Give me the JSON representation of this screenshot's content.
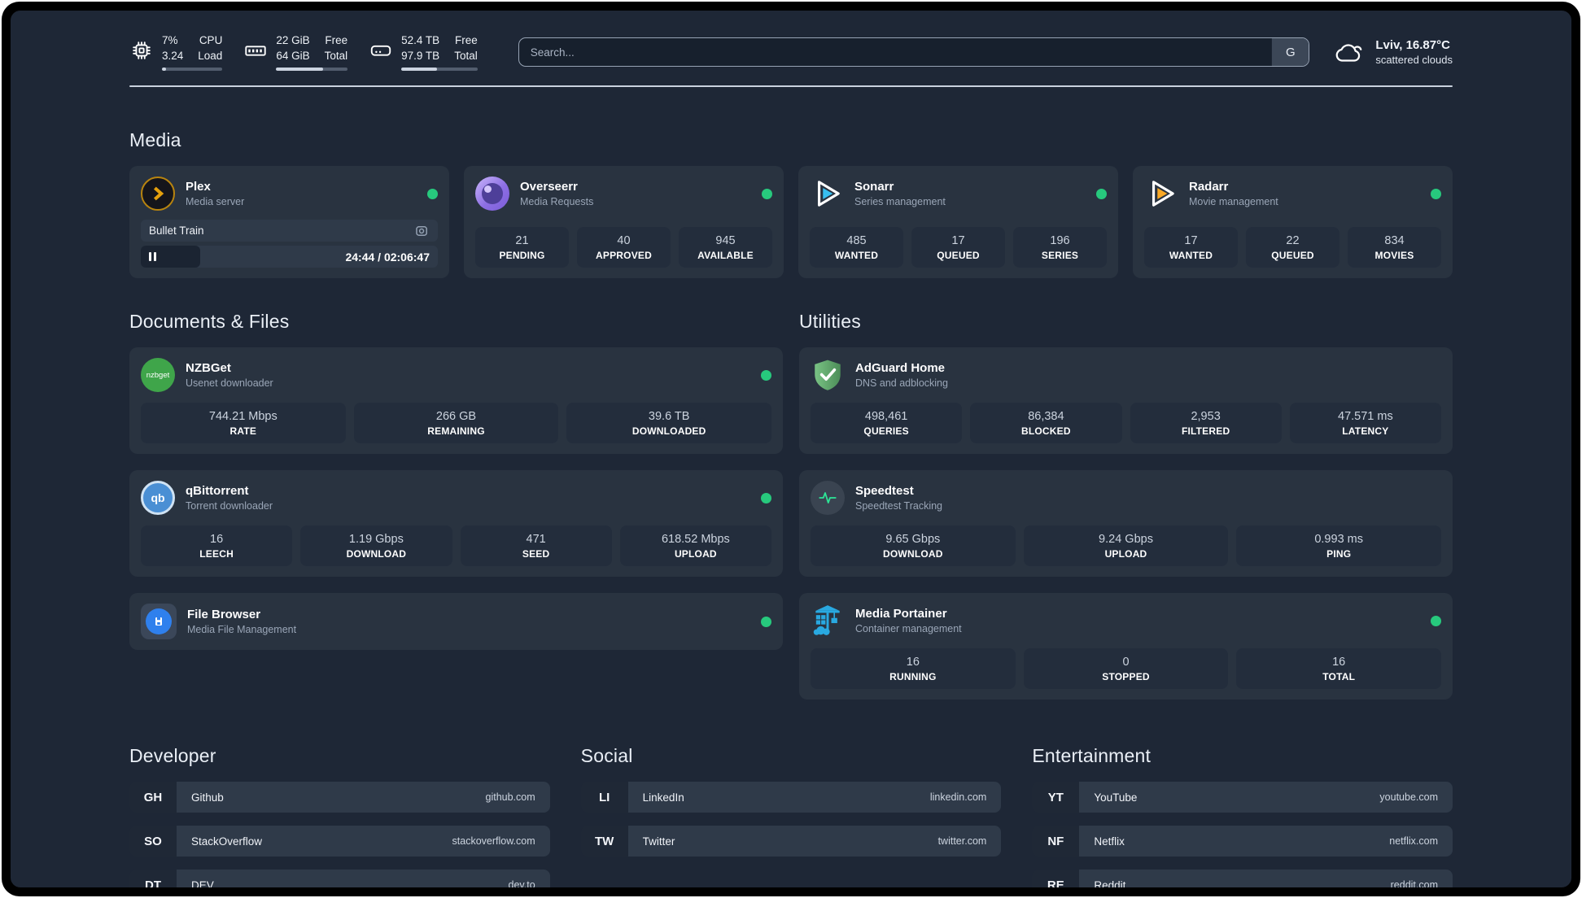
{
  "colors": {
    "status_online": "#27c97d",
    "page_bg": "#1e2736",
    "card_bg": "#293340"
  },
  "topbar": {
    "resources": [
      {
        "name": "cpu",
        "v1": "7%",
        "v2": "3.24",
        "l1": "CPU",
        "l2": "Load",
        "percent": 7
      },
      {
        "name": "memory",
        "v1": "22 GiB",
        "v2": "64 GiB",
        "l1": "Free",
        "l2": "Total",
        "percent": 66
      },
      {
        "name": "disk",
        "v1": "52.4 TB",
        "v2": "97.9 TB",
        "l1": "Free",
        "l2": "Total",
        "percent": 47
      }
    ],
    "search": {
      "placeholder": "Search...",
      "button_label": "G"
    },
    "weather": {
      "location": "Lviv, 16.87°C",
      "condition": "scattered clouds"
    }
  },
  "media": {
    "title": "Media",
    "plex": {
      "title": "Plex",
      "subtitle": "Media server",
      "now_playing": "Bullet Train",
      "time": "24:44 / 02:06:47",
      "progress_percent": 20
    },
    "overseerr": {
      "title": "Overseerr",
      "subtitle": "Media Requests",
      "stats": [
        {
          "value": "21",
          "label": "PENDING"
        },
        {
          "value": "40",
          "label": "APPROVED"
        },
        {
          "value": "945",
          "label": "AVAILABLE"
        }
      ]
    },
    "sonarr": {
      "title": "Sonarr",
      "subtitle": "Series management",
      "stats": [
        {
          "value": "485",
          "label": "WANTED"
        },
        {
          "value": "17",
          "label": "QUEUED"
        },
        {
          "value": "196",
          "label": "SERIES"
        }
      ]
    },
    "radarr": {
      "title": "Radarr",
      "subtitle": "Movie management",
      "stats": [
        {
          "value": "17",
          "label": "WANTED"
        },
        {
          "value": "22",
          "label": "QUEUED"
        },
        {
          "value": "834",
          "label": "MOVIES"
        }
      ]
    }
  },
  "documents": {
    "title": "Documents & Files",
    "nzbget": {
      "title": "NZBGet",
      "subtitle": "Usenet downloader",
      "icon_text": "nzbget",
      "stats": [
        {
          "value": "744.21 Mbps",
          "label": "RATE"
        },
        {
          "value": "266 GB",
          "label": "REMAINING"
        },
        {
          "value": "39.6 TB",
          "label": "DOWNLOADED"
        }
      ]
    },
    "qbittorrent": {
      "title": "qBittorrent",
      "subtitle": "Torrent downloader",
      "icon_text": "qb",
      "stats": [
        {
          "value": "16",
          "label": "LEECH"
        },
        {
          "value": "1.19 Gbps",
          "label": "DOWNLOAD"
        },
        {
          "value": "471",
          "label": "SEED"
        },
        {
          "value": "618.52 Mbps",
          "label": "UPLOAD"
        }
      ]
    },
    "filebrowser": {
      "title": "File Browser",
      "subtitle": "Media File Management"
    }
  },
  "utilities": {
    "title": "Utilities",
    "adguard": {
      "title": "AdGuard Home",
      "subtitle": "DNS and adblocking",
      "stats": [
        {
          "value": "498,461",
          "label": "QUERIES"
        },
        {
          "value": "86,384",
          "label": "BLOCKED"
        },
        {
          "value": "2,953",
          "label": "FILTERED"
        },
        {
          "value": "47.571 ms",
          "label": "LATENCY"
        }
      ]
    },
    "speedtest": {
      "title": "Speedtest",
      "subtitle": "Speedtest Tracking",
      "stats": [
        {
          "value": "9.65 Gbps",
          "label": "DOWNLOAD"
        },
        {
          "value": "9.24 Gbps",
          "label": "UPLOAD"
        },
        {
          "value": "0.993 ms",
          "label": "PING"
        }
      ]
    },
    "portainer": {
      "title": "Media Portainer",
      "subtitle": "Container management",
      "stats": [
        {
          "value": "16",
          "label": "RUNNING"
        },
        {
          "value": "0",
          "label": "STOPPED"
        },
        {
          "value": "16",
          "label": "TOTAL"
        }
      ]
    }
  },
  "bookmarks": {
    "developer": {
      "title": "Developer",
      "items": [
        {
          "abbr": "GH",
          "name": "Github",
          "url": "github.com"
        },
        {
          "abbr": "SO",
          "name": "StackOverflow",
          "url": "stackoverflow.com"
        },
        {
          "abbr": "DT",
          "name": "DEV",
          "url": "dev.to"
        }
      ]
    },
    "social": {
      "title": "Social",
      "items": [
        {
          "abbr": "LI",
          "name": "LinkedIn",
          "url": "linkedin.com"
        },
        {
          "abbr": "TW",
          "name": "Twitter",
          "url": "twitter.com"
        }
      ]
    },
    "entertainment": {
      "title": "Entertainment",
      "items": [
        {
          "abbr": "YT",
          "name": "YouTube",
          "url": "youtube.com"
        },
        {
          "abbr": "NF",
          "name": "Netflix",
          "url": "netflix.com"
        },
        {
          "abbr": "RE",
          "name": "Reddit",
          "url": "reddit.com"
        }
      ]
    }
  }
}
